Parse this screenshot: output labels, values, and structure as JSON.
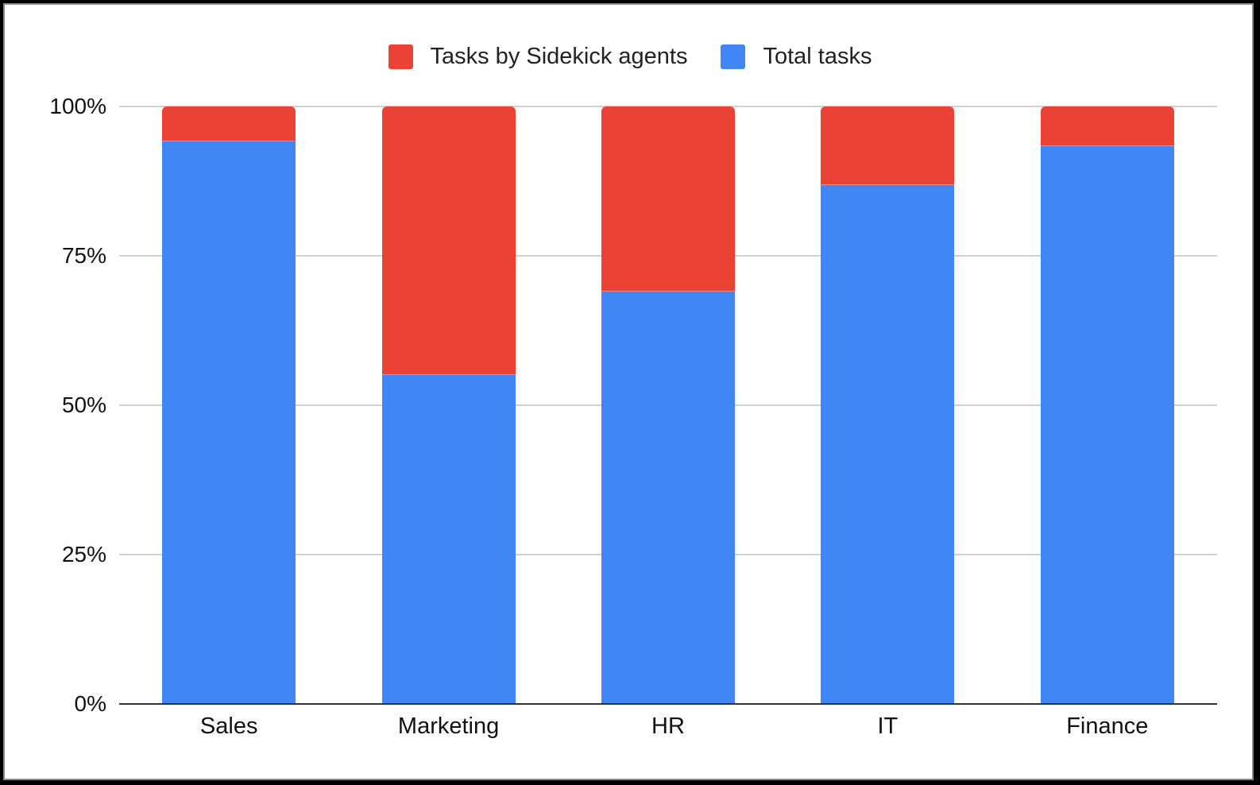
{
  "chart_data": {
    "type": "bar",
    "stacked": true,
    "stack_mode": "percent",
    "title": "",
    "xlabel": "",
    "ylabel": "",
    "categories": [
      "Sales",
      "Marketing",
      "HR",
      "IT",
      "Finance"
    ],
    "series": [
      {
        "name": "Tasks by Sidekick agents",
        "color": "#ea4335",
        "values": [
          5.7,
          44.8,
          30.9,
          13.0,
          6.5
        ]
      },
      {
        "name": "Total tasks",
        "color": "#4285f4",
        "values": [
          94.3,
          55.2,
          69.1,
          87.0,
          93.5
        ]
      }
    ],
    "ylim": [
      0,
      100
    ],
    "yticks": [
      "0%",
      "25%",
      "50%",
      "75%",
      "100%"
    ],
    "grid": true,
    "legend_position": "top"
  },
  "legend": {
    "items": [
      {
        "label": "Tasks by Sidekick agents",
        "color": "#ea4335"
      },
      {
        "label": "Total tasks",
        "color": "#4285f4"
      }
    ]
  },
  "axes": {
    "y_labels": [
      "100%",
      "75%",
      "50%",
      "25%",
      "0%"
    ],
    "x_labels": [
      "Sales",
      "Marketing",
      "HR",
      "IT",
      "Finance"
    ]
  }
}
